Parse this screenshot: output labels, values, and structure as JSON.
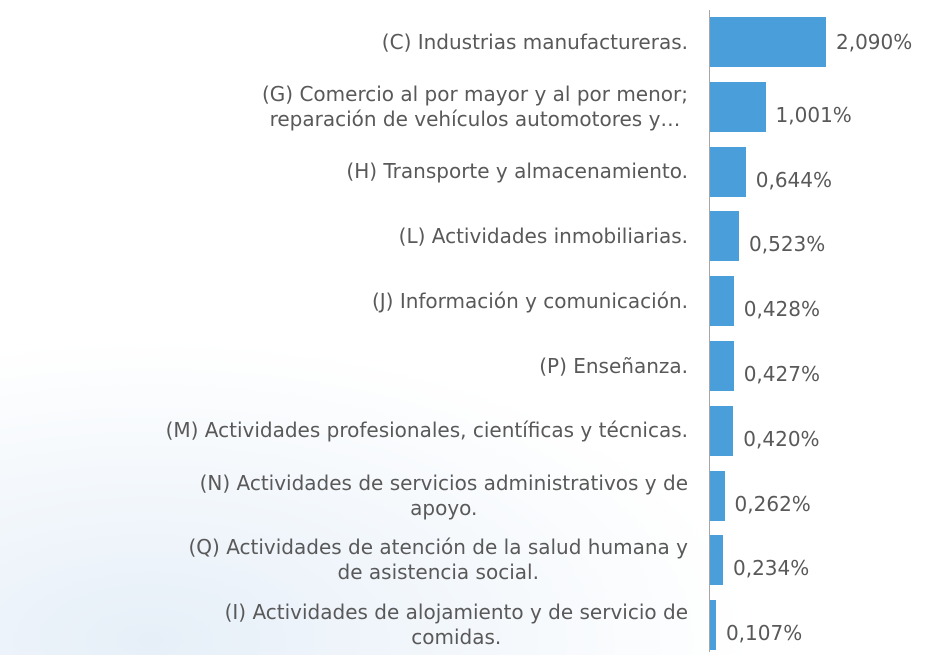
{
  "chart_data": {
    "type": "bar",
    "orientation": "horizontal",
    "color": "#4a9fdb",
    "categories": [
      "(C) Industrias manufactureras.",
      "(G) Comercio al por mayor y al por menor;\nreparación de vehículos automotores y…",
      "(H) Transporte y almacenamiento.",
      "(L) Actividades inmobiliarias.",
      "(J) Información y comunicación.",
      "(P) Enseñanza.",
      "(M) Actividades profesionales, científicas y técnicas.",
      "(N) Actividades de servicios administrativos y de\napoyo.",
      "(Q) Actividades de atención de la salud humana y\nde asistencia social.",
      "(I) Actividades de alojamiento y de servicio de\ncomidas."
    ],
    "values": [
      2.09,
      1.001,
      0.644,
      0.523,
      0.428,
      0.427,
      0.42,
      0.262,
      0.234,
      0.107
    ],
    "value_labels": [
      "2,090%",
      "1,001%",
      "0,644%",
      "0,523%",
      "0,428%",
      "0,427%",
      "0,420%",
      "0,262%",
      "0,234%",
      "0,107%"
    ]
  }
}
